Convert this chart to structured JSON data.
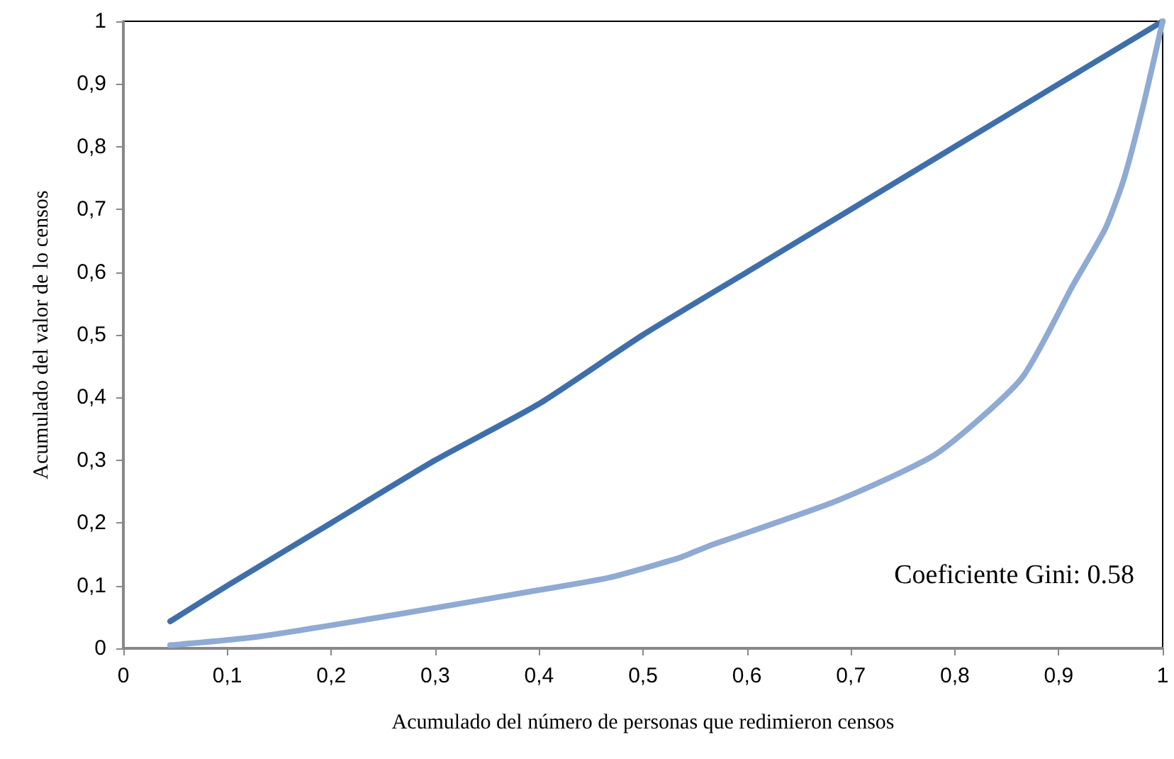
{
  "chart_data": {
    "type": "line",
    "xlabel": "Acumulado del número de personas que redimieron censos",
    "ylabel": "Acumulado del valor de lo censos",
    "xlim": [
      0,
      1
    ],
    "ylim": [
      0,
      1
    ],
    "xticks": [
      0,
      {
        "value": 0.1,
        "label": "0,1"
      },
      {
        "value": 0.2,
        "label": "0,2"
      },
      {
        "value": 0.3,
        "label": "0,3"
      },
      {
        "value": 0.4,
        "label": "0,4"
      },
      {
        "value": 0.5,
        "label": "0,5"
      },
      {
        "value": 0.6,
        "label": "0,6"
      },
      {
        "value": 0.7,
        "label": "0,7"
      },
      {
        "value": 0.8,
        "label": "0,8"
      },
      {
        "value": 0.9,
        "label": "0,9"
      },
      1
    ],
    "yticks": [
      0,
      {
        "value": 0.1,
        "label": "0,1"
      },
      {
        "value": 0.2,
        "label": "0,2"
      },
      {
        "value": 0.3,
        "label": "0,3"
      },
      {
        "value": 0.4,
        "label": "0,4"
      },
      {
        "value": 0.5,
        "label": "0,5"
      },
      {
        "value": 0.6,
        "label": "0,6"
      },
      {
        "value": 0.7,
        "label": "0,7"
      },
      {
        "value": 0.8,
        "label": "0,8"
      },
      {
        "value": 0.9,
        "label": "0,9"
      },
      1
    ],
    "grid": false,
    "marker": "none",
    "line_style": "solid",
    "annotations": [
      "Coeficiente Gini: 0.58"
    ],
    "series": [
      {
        "color": "#3f6faa",
        "x": [
          0.045,
          0.1,
          0.2,
          0.3,
          0.4,
          0.5,
          0.6,
          0.7,
          0.8,
          0.9,
          1
        ],
        "values": [
          0.043,
          0.1,
          0.2,
          0.3,
          0.39,
          0.5,
          0.6,
          0.7,
          0.8,
          0.9,
          1
        ]
      },
      {
        "color": "#8faad3",
        "x": [
          0.045,
          0.127,
          0.263,
          0.4,
          0.468,
          0.536,
          0.563,
          0.686,
          0.782,
          0.864,
          0.914,
          0.945,
          0.963,
          0.982,
          1
        ],
        "values": [
          0.005,
          0.018,
          0.054,
          0.093,
          0.113,
          0.145,
          0.163,
          0.235,
          0.31,
          0.43,
          0.58,
          0.67,
          0.75,
          0.87,
          1
        ]
      }
    ]
  }
}
